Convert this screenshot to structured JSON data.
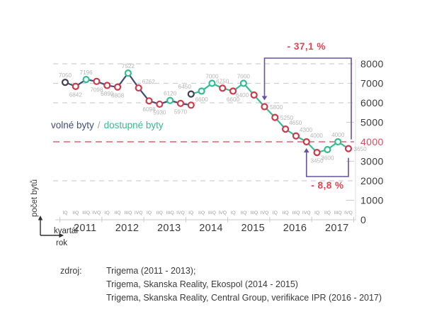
{
  "chart_data": {
    "type": "line",
    "ylabel": "počet bytů",
    "x_axis_labels": {
      "kvartal": "kvartál",
      "rok": "rok"
    },
    "quarter_labels": [
      "IQ",
      "IIQ",
      "IIIQ",
      "IVQ"
    ],
    "years": [
      "2011",
      "2012",
      "2013",
      "2014",
      "2015",
      "2016",
      "2017"
    ],
    "y_ticks": [
      8000,
      7000,
      6000,
      5000,
      4000,
      3000,
      2000,
      1000,
      0
    ],
    "ylim": [
      0,
      8000
    ],
    "grid": {
      "gray_lines": [
        8000,
        7000,
        6000,
        2000
      ],
      "red_line": 4000
    },
    "red_tick_value": 4000,
    "legend": {
      "series1": "volné byty",
      "separator": "/",
      "series2": "dostupné byty"
    },
    "series": [
      {
        "name": "volné byty",
        "color": "#3f4e78",
        "start_quarter_index": 0,
        "points": [
          {
            "value": 7050,
            "label": "7050",
            "marker": "first",
            "label_pos": "above"
          },
          {
            "value": 6842,
            "label": "6842",
            "marker": "down",
            "label_pos": "below"
          },
          {
            "value": 7196,
            "label": "7196",
            "marker": "up",
            "label_pos": "above"
          },
          {
            "value": 7098,
            "label": "7098",
            "marker": "down",
            "label_pos": "below"
          },
          {
            "value": 6890,
            "label": "6890",
            "marker": "down",
            "label_pos": "below"
          },
          {
            "value": 6808,
            "label": "6808",
            "marker": "down",
            "label_pos": "below"
          },
          {
            "value": 7522,
            "label": "7522",
            "marker": "up",
            "label_pos": "above"
          },
          {
            "value": 6762,
            "label": "6762",
            "marker": "down",
            "label_pos": "above-right"
          },
          {
            "value": 6098,
            "label": "6098",
            "marker": "down",
            "label_pos": "below"
          },
          {
            "value": 5930,
            "label": "5930",
            "marker": "down",
            "label_pos": "below"
          },
          {
            "value": 6120,
            "label": "6120",
            "marker": "up",
            "label_pos": "above"
          },
          {
            "value": 5970,
            "label": "5970",
            "marker": "down",
            "label_pos": "below"
          },
          {
            "value": 5880,
            "label": "",
            "marker": "down",
            "label_pos": "below"
          }
        ]
      },
      {
        "name": "dostupné byty",
        "color": "#35bd8d",
        "start_quarter_index": 12,
        "points": [
          {
            "value": 6450,
            "label": "6450",
            "marker": "first",
            "label_pos": "above-left"
          },
          {
            "value": 6600,
            "label": "6600",
            "marker": "up",
            "label_pos": "below"
          },
          {
            "value": 7000,
            "label": "7000",
            "marker": "up",
            "label_pos": "above"
          },
          {
            "value": 6750,
            "label": "6750",
            "marker": "down",
            "label_pos": "above"
          },
          {
            "value": 6600,
            "label": "6600",
            "marker": "down",
            "label_pos": "below"
          },
          {
            "value": 7000,
            "label": "7000",
            "marker": "up",
            "label_pos": "above"
          },
          {
            "value": 6400,
            "label": "6400",
            "marker": "down",
            "label_pos": "left"
          },
          {
            "value": 5800,
            "label": "5800",
            "marker": "down",
            "label_pos": "right"
          },
          {
            "value": 5250,
            "label": "5250",
            "marker": "down",
            "label_pos": "right"
          },
          {
            "value": 4650,
            "label": "4650",
            "marker": "down",
            "label_pos": "above-right"
          },
          {
            "value": 4300,
            "label": "4300",
            "marker": "down",
            "label_pos": "above-right"
          },
          {
            "value": 4000,
            "label": "4000",
            "marker": "down",
            "label_pos": "above-right"
          },
          {
            "value": 3450,
            "label": "3450",
            "marker": "down",
            "label_pos": "below"
          },
          {
            "value": 3600,
            "label": "3600",
            "marker": "up",
            "label_pos": "below"
          },
          {
            "value": 4000,
            "label": "4000",
            "marker": "up",
            "label_pos": "above"
          },
          {
            "value": 3650,
            "label": "3650",
            "marker": "down",
            "label_pos": "right"
          }
        ]
      }
    ],
    "marker_colors": {
      "first": "#44424e",
      "up": "#35bd8d",
      "down": "#cf3a4a"
    },
    "annotations": [
      {
        "text": "- 37,1 %",
        "type": "top-bracket",
        "from_quarter_index": 19,
        "to_quarter_index": 27
      },
      {
        "text": "- 8,8 %",
        "type": "bottom-bracket",
        "from_quarter_index": 23,
        "to_quarter_index": 27
      }
    ],
    "annotation_color": "#e8404d",
    "bracket_color": "#6650a5",
    "colors": {
      "grid_gray": "#cfcfcf",
      "grid_red": "#e0606a",
      "axis_line": "#d4d4d4",
      "value_label": "#b5b5b5",
      "quarter_label": "#9a9a9a",
      "year_label": "#3b3b3b",
      "y_tick_label": "#3a3a3a",
      "red_tick_label": "#d4515c",
      "legend_separator": "#9aa5b8",
      "axis_glyph": "#2e2e2e"
    }
  },
  "source": {
    "label": "zdroj:",
    "lines": [
      "Trigema (2011 - 2013);",
      "Trigema, Skanska Reality, Ekospol (2014 - 2015)",
      "Trigema, Skanska Reality, Central Group, verifikace IPR (2016 - 2017)"
    ]
  }
}
